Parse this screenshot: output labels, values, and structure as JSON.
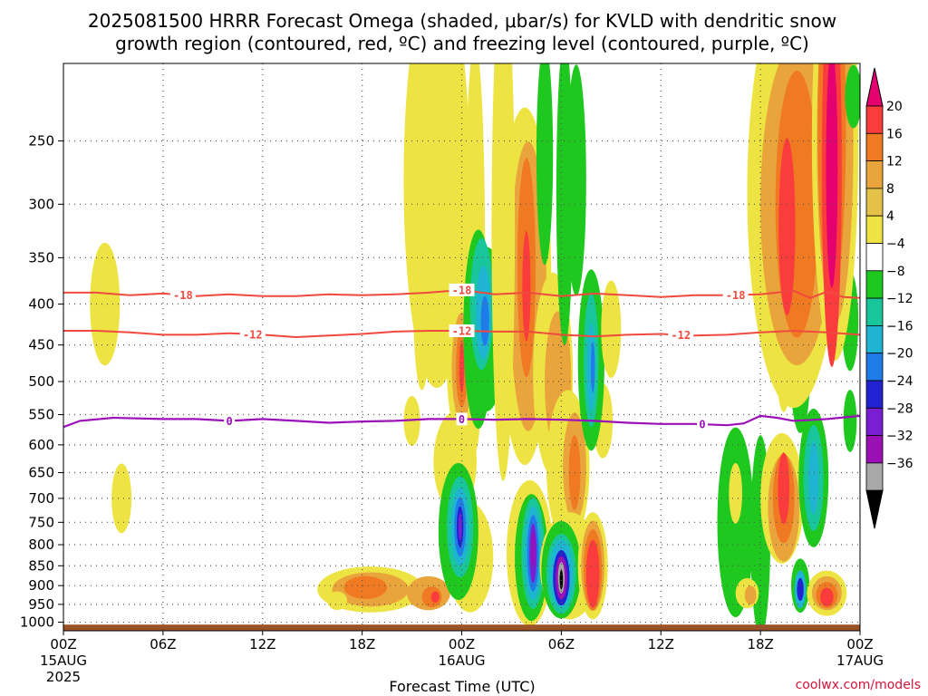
{
  "title_line1": "2025081500 HRRR Forecast Omega (shaded, μbar/s) for KVLD with dendritic snow",
  "title_line2": "growth region (contoured, red, ºC) and freezing level (contoured, purple, ºC)",
  "xlabel": "Forecast Time (UTC)",
  "watermark": "coolwx.com/models",
  "x_ticks": [
    "00Z",
    "06Z",
    "12Z",
    "18Z",
    "00Z",
    "06Z",
    "12Z",
    "18Z",
    "00Z"
  ],
  "x_sub_ticks": {
    "0": [
      "15AUG",
      "2025"
    ],
    "4": [
      "16AUG"
    ],
    "8": [
      "17AUG"
    ]
  },
  "y_ticks": [
    250,
    300,
    350,
    400,
    450,
    500,
    550,
    600,
    650,
    700,
    750,
    800,
    850,
    900,
    950,
    1000
  ],
  "colorbar": {
    "labels": [
      "20",
      "16",
      "12",
      "8",
      "4",
      "−4",
      "−8",
      "−12",
      "−16",
      "−20",
      "−24",
      "−28",
      "−32",
      "−36"
    ],
    "colors": [
      "#e4006e",
      "#fb3c3c",
      "#f07a22",
      "#e9a53b",
      "#e4c24a",
      "#ede443",
      "#ffffff",
      "#1ec81e",
      "#19c59a",
      "#1eb4d2",
      "#1e7be8",
      "#2222d0",
      "#7a1ed2",
      "#9a10b4",
      "#a8a8a8",
      "#000000"
    ],
    "top_arrow_color": "#e4006e",
    "bottom_arrow_color": "#000000"
  },
  "chart_data": {
    "type": "heatmap",
    "title": "2025081500 HRRR Forecast Omega (shaded, μbar/s) for KVLD with dendritic snow growth region (contoured, red, ºC) and freezing level (contoured, purple, ºC)",
    "xlabel": "Forecast Time (UTC)",
    "ylabel": "",
    "x_range_hours": [
      0,
      48
    ],
    "y_range_hPa": [
      200,
      1025
    ],
    "y_scale": "log",
    "grid": true,
    "omega_regions": [
      {
        "x": 2.5,
        "p": 400,
        "rx": 0.9,
        "rp": 70,
        "value": 5
      },
      {
        "x": 3.5,
        "p": 700,
        "rx": 0.6,
        "rp": 70,
        "value": 5
      },
      {
        "x": 18.5,
        "p": 910,
        "rx": 3.2,
        "rp": 60,
        "value": 5
      },
      {
        "x": 18.5,
        "p": 910,
        "rx": 2.3,
        "rp": 45,
        "value": 9
      },
      {
        "x": 18.2,
        "p": 905,
        "rx": 1.3,
        "rp": 30,
        "value": 13
      },
      {
        "x": 22.0,
        "p": 920,
        "rx": 1.3,
        "rp": 45,
        "value": 8
      },
      {
        "x": 22.2,
        "p": 930,
        "rx": 0.6,
        "rp": 28,
        "value": 14
      },
      {
        "x": 22.4,
        "p": 930,
        "rx": 0.25,
        "rp": 15,
        "value": 18
      },
      {
        "x": 16.5,
        "p": 940,
        "rx": 0.6,
        "rp": 25,
        "value": 5
      },
      {
        "x": 22.5,
        "p": 280,
        "rx": 2.0,
        "rp": 150,
        "value": 5
      },
      {
        "x": 21.6,
        "p": 410,
        "rx": 0.5,
        "rp": 90,
        "value": 5
      },
      {
        "x": 24.8,
        "p": 340,
        "rx": 0.6,
        "rp": 180,
        "value": 5
      },
      {
        "x": 21.0,
        "p": 560,
        "rx": 0.5,
        "rp": 40,
        "value": 5
      },
      {
        "x": 23.6,
        "p": 630,
        "rx": 1.3,
        "rp": 90,
        "value": 5
      },
      {
        "x": 24.0,
        "p": 480,
        "rx": 0.9,
        "rp": 100,
        "value": 5
      },
      {
        "x": 24.0,
        "p": 480,
        "rx": 0.6,
        "rp": 75,
        "value": 9
      },
      {
        "x": 24.0,
        "p": 480,
        "rx": 0.35,
        "rp": 55,
        "value": 14
      },
      {
        "x": 24.0,
        "p": 480,
        "rx": 0.15,
        "rp": 35,
        "value": 18
      },
      {
        "x": 25.0,
        "p": 430,
        "rx": 0.9,
        "rp": 120,
        "value": -6
      },
      {
        "x": 25.5,
        "p": 430,
        "rx": 1.2,
        "rp": 100,
        "value": -6
      },
      {
        "x": 25.2,
        "p": 400,
        "rx": 0.7,
        "rp": 75,
        "value": -10
      },
      {
        "x": 25.3,
        "p": 410,
        "rx": 0.45,
        "rp": 55,
        "value": -14
      },
      {
        "x": 25.4,
        "p": 420,
        "rx": 0.25,
        "rp": 30,
        "value": -18
      },
      {
        "x": 24.5,
        "p": 830,
        "rx": 1.4,
        "rp": 130,
        "value": 5
      },
      {
        "x": 23.8,
        "p": 770,
        "rx": 1.2,
        "rp": 150,
        "value": -6
      },
      {
        "x": 23.9,
        "p": 760,
        "rx": 0.8,
        "rp": 110,
        "value": -10
      },
      {
        "x": 23.9,
        "p": 760,
        "rx": 0.55,
        "rp": 85,
        "value": -14
      },
      {
        "x": 23.9,
        "p": 760,
        "rx": 0.35,
        "rp": 65,
        "value": -18
      },
      {
        "x": 23.9,
        "p": 760,
        "rx": 0.2,
        "rp": 45,
        "value": -22
      },
      {
        "x": 23.9,
        "p": 760,
        "rx": 0.1,
        "rp": 30,
        "value": -26
      },
      {
        "x": 27.8,
        "p": 380,
        "rx": 1.6,
        "rp": 180,
        "value": 5
      },
      {
        "x": 28.0,
        "p": 380,
        "rx": 1.1,
        "rp": 150,
        "value": 9
      },
      {
        "x": 27.9,
        "p": 360,
        "rx": 0.55,
        "rp": 110,
        "value": 13
      },
      {
        "x": 27.9,
        "p": 380,
        "rx": 0.25,
        "rp": 60,
        "value": 18
      },
      {
        "x": 29.5,
        "p": 490,
        "rx": 1.2,
        "rp": 140,
        "value": 5
      },
      {
        "x": 29.8,
        "p": 500,
        "rx": 0.8,
        "rp": 100,
        "value": 9
      },
      {
        "x": 30.4,
        "p": 640,
        "rx": 1.3,
        "rp": 140,
        "value": 5
      },
      {
        "x": 30.8,
        "p": 640,
        "rx": 0.7,
        "rp": 100,
        "value": 9
      },
      {
        "x": 30.8,
        "p": 650,
        "rx": 0.35,
        "rp": 70,
        "value": 13
      },
      {
        "x": 28.1,
        "p": 820,
        "rx": 1.4,
        "rp": 170,
        "value": 5
      },
      {
        "x": 28.2,
        "p": 830,
        "rx": 1.0,
        "rp": 150,
        "value": -6
      },
      {
        "x": 28.3,
        "p": 820,
        "rx": 0.7,
        "rp": 130,
        "value": -10
      },
      {
        "x": 28.3,
        "p": 820,
        "rx": 0.5,
        "rp": 110,
        "value": -14
      },
      {
        "x": 28.3,
        "p": 820,
        "rx": 0.35,
        "rp": 90,
        "value": -18
      },
      {
        "x": 28.3,
        "p": 820,
        "rx": 0.22,
        "rp": 70,
        "value": -24
      },
      {
        "x": 28.3,
        "p": 810,
        "rx": 0.1,
        "rp": 40,
        "value": -30
      },
      {
        "x": 30.5,
        "p": 850,
        "rx": 1.8,
        "rp": 130,
        "value": 5
      },
      {
        "x": 30.0,
        "p": 860,
        "rx": 1.2,
        "rp": 120,
        "value": -6
      },
      {
        "x": 30.0,
        "p": 870,
        "rx": 0.9,
        "rp": 100,
        "value": -10
      },
      {
        "x": 30.0,
        "p": 870,
        "rx": 0.7,
        "rp": 85,
        "value": -14
      },
      {
        "x": 30.0,
        "p": 880,
        "rx": 0.5,
        "rp": 70,
        "value": -20
      },
      {
        "x": 30.0,
        "p": 880,
        "rx": 0.35,
        "rp": 55,
        "value": -28
      },
      {
        "x": 30.0,
        "p": 880,
        "rx": 0.2,
        "rp": 40,
        "value": -34
      },
      {
        "x": 30.0,
        "p": 885,
        "rx": 0.1,
        "rp": 25,
        "value": -38
      },
      {
        "x": 31.9,
        "p": 850,
        "rx": 0.9,
        "rp": 130,
        "value": 5
      },
      {
        "x": 31.9,
        "p": 850,
        "rx": 0.7,
        "rp": 110,
        "value": 9
      },
      {
        "x": 31.9,
        "p": 860,
        "rx": 0.55,
        "rp": 100,
        "value": 13
      },
      {
        "x": 31.9,
        "p": 870,
        "rx": 0.4,
        "rp": 85,
        "value": 18
      },
      {
        "x": 32.5,
        "p": 560,
        "rx": 0.6,
        "rp": 60,
        "value": 5
      },
      {
        "x": 31.8,
        "p": 470,
        "rx": 0.8,
        "rp": 120,
        "value": -6
      },
      {
        "x": 31.8,
        "p": 470,
        "rx": 0.45,
        "rp": 90,
        "value": -10
      },
      {
        "x": 31.8,
        "p": 480,
        "rx": 0.25,
        "rp": 60,
        "value": -14
      },
      {
        "x": 31.9,
        "p": 480,
        "rx": 0.12,
        "rp": 35,
        "value": -18
      },
      {
        "x": 29.0,
        "p": 260,
        "rx": 0.5,
        "rp": 80,
        "value": -6
      },
      {
        "x": 30.2,
        "p": 290,
        "rx": 0.5,
        "rp": 120,
        "value": -6
      },
      {
        "x": 30.9,
        "p": 280,
        "rx": 0.6,
        "rp": 90,
        "value": -6
      },
      {
        "x": 26.5,
        "p": 320,
        "rx": 0.7,
        "rp": 200,
        "value": 5
      },
      {
        "x": 33.0,
        "p": 430,
        "rx": 0.6,
        "rp": 60,
        "value": 5
      },
      {
        "x": 40.5,
        "p": 750,
        "rx": 1.1,
        "rp": 200,
        "value": -6
      },
      {
        "x": 40.5,
        "p": 690,
        "rx": 0.4,
        "rp": 60,
        "value": 5
      },
      {
        "x": 42.0,
        "p": 780,
        "rx": 0.6,
        "rp": 220,
        "value": -6
      },
      {
        "x": 41.2,
        "p": 920,
        "rx": 0.7,
        "rp": 40,
        "value": 5
      },
      {
        "x": 41.4,
        "p": 925,
        "rx": 0.35,
        "rp": 25,
        "value": 9
      },
      {
        "x": 43.3,
        "p": 700,
        "rx": 1.3,
        "rp": 130,
        "value": 5
      },
      {
        "x": 43.4,
        "p": 720,
        "rx": 0.95,
        "rp": 110,
        "value": 9
      },
      {
        "x": 43.4,
        "p": 700,
        "rx": 0.65,
        "rp": 90,
        "value": 13
      },
      {
        "x": 43.4,
        "p": 680,
        "rx": 0.35,
        "rp": 70,
        "value": 18
      },
      {
        "x": 43.4,
        "p": 470,
        "rx": 0.45,
        "rp": 70,
        "value": 5
      },
      {
        "x": 44.4,
        "p": 480,
        "rx": 0.6,
        "rp": 90,
        "value": -6
      },
      {
        "x": 44.4,
        "p": 470,
        "rx": 0.3,
        "rp": 60,
        "value": -10
      },
      {
        "x": 45.2,
        "p": 660,
        "rx": 0.9,
        "rp": 130,
        "value": -6
      },
      {
        "x": 45.2,
        "p": 660,
        "rx": 0.6,
        "rp": 100,
        "value": -10
      },
      {
        "x": 45.2,
        "p": 660,
        "rx": 0.3,
        "rp": 70,
        "value": -14
      },
      {
        "x": 44.4,
        "p": 900,
        "rx": 0.55,
        "rp": 70,
        "value": -6
      },
      {
        "x": 44.4,
        "p": 910,
        "rx": 0.35,
        "rp": 50,
        "value": -12
      },
      {
        "x": 44.4,
        "p": 910,
        "rx": 0.2,
        "rp": 30,
        "value": -22
      },
      {
        "x": 46.0,
        "p": 920,
        "rx": 1.2,
        "rp": 60,
        "value": 5
      },
      {
        "x": 46.0,
        "p": 920,
        "rx": 0.9,
        "rp": 45,
        "value": 9
      },
      {
        "x": 46.0,
        "p": 925,
        "rx": 0.65,
        "rp": 35,
        "value": 13
      },
      {
        "x": 46.0,
        "p": 930,
        "rx": 0.4,
        "rp": 25,
        "value": 18
      },
      {
        "x": 47.4,
        "p": 420,
        "rx": 0.5,
        "rp": 60,
        "value": -6
      },
      {
        "x": 47.4,
        "p": 560,
        "rx": 0.4,
        "rp": 50,
        "value": -6
      },
      {
        "x": 44.0,
        "p": 290,
        "rx": 2.8,
        "rp": 160,
        "value": 5
      },
      {
        "x": 44.2,
        "p": 300,
        "rx": 2.2,
        "rp": 130,
        "value": 9
      },
      {
        "x": 44.2,
        "p": 300,
        "rx": 1.3,
        "rp": 110,
        "value": 13
      },
      {
        "x": 43.6,
        "p": 320,
        "rx": 0.5,
        "rp": 80,
        "value": 18
      },
      {
        "x": 46.5,
        "p": 250,
        "rx": 1.4,
        "rp": 140,
        "value": 5
      },
      {
        "x": 46.5,
        "p": 250,
        "rx": 1.1,
        "rp": 120,
        "value": 9
      },
      {
        "x": 46.3,
        "p": 240,
        "rx": 0.85,
        "rp": 110,
        "value": 13
      },
      {
        "x": 46.3,
        "p": 270,
        "rx": 0.6,
        "rp": 140,
        "value": 18
      },
      {
        "x": 46.3,
        "p": 270,
        "rx": 0.35,
        "rp": 90,
        "value": 22
      },
      {
        "x": 47.6,
        "p": 220,
        "rx": 0.5,
        "rp": 20,
        "value": -6
      }
    ],
    "dgz_contours": [
      {
        "value": -18,
        "label": "-18",
        "points": [
          [
            0,
            387
          ],
          [
            2,
            387
          ],
          [
            4,
            390
          ],
          [
            6,
            388
          ],
          [
            8,
            391
          ],
          [
            10,
            389
          ],
          [
            12,
            391
          ],
          [
            14,
            391
          ],
          [
            16,
            389
          ],
          [
            18,
            390
          ],
          [
            20,
            389
          ],
          [
            22,
            387
          ],
          [
            24,
            384
          ],
          [
            26,
            389
          ],
          [
            28,
            387
          ],
          [
            30,
            391
          ],
          [
            32,
            388
          ],
          [
            34,
            390
          ],
          [
            36,
            392
          ],
          [
            38,
            390
          ],
          [
            40,
            390
          ],
          [
            42,
            389
          ],
          [
            44,
            385
          ],
          [
            45,
            393
          ],
          [
            46,
            386
          ],
          [
            47,
            392
          ],
          [
            48,
            393
          ]
        ],
        "label_x": [
          7.2,
          24.0,
          40.5
        ]
      },
      {
        "value": -12,
        "label": "-12",
        "points": [
          [
            0,
            432
          ],
          [
            2,
            432
          ],
          [
            4,
            434
          ],
          [
            6,
            437
          ],
          [
            8,
            437
          ],
          [
            10,
            435
          ],
          [
            12,
            437
          ],
          [
            14,
            440
          ],
          [
            16,
            438
          ],
          [
            18,
            436
          ],
          [
            20,
            433
          ],
          [
            22,
            432
          ],
          [
            24,
            432
          ],
          [
            26,
            433
          ],
          [
            28,
            433
          ],
          [
            30,
            437
          ],
          [
            32,
            439
          ],
          [
            34,
            437
          ],
          [
            36,
            436
          ],
          [
            38,
            438
          ],
          [
            40,
            437
          ],
          [
            42,
            434
          ],
          [
            44,
            432
          ],
          [
            46,
            434
          ],
          [
            48,
            437
          ]
        ],
        "label_x": [
          11.4,
          24.0,
          37.2
        ]
      }
    ],
    "freezing_contour": {
      "value": 0,
      "label": "0",
      "points": [
        [
          0,
          570
        ],
        [
          1,
          560
        ],
        [
          3,
          555
        ],
        [
          6,
          557
        ],
        [
          8,
          557
        ],
        [
          10,
          560
        ],
        [
          12,
          557
        ],
        [
          14,
          560
        ],
        [
          16,
          563
        ],
        [
          18,
          561
        ],
        [
          20,
          560
        ],
        [
          22,
          557
        ],
        [
          24,
          557
        ],
        [
          26,
          558
        ],
        [
          28,
          557
        ],
        [
          30,
          558
        ],
        [
          32,
          560
        ],
        [
          34,
          563
        ],
        [
          36,
          565
        ],
        [
          38,
          565
        ],
        [
          40,
          567
        ],
        [
          41,
          564
        ],
        [
          42,
          552
        ],
        [
          43,
          555
        ],
        [
          44,
          560
        ],
        [
          46,
          557
        ],
        [
          48,
          552
        ]
      ],
      "label_x": [
        10.0,
        24.0,
        38.5
      ]
    },
    "surface_p": 1007
  }
}
